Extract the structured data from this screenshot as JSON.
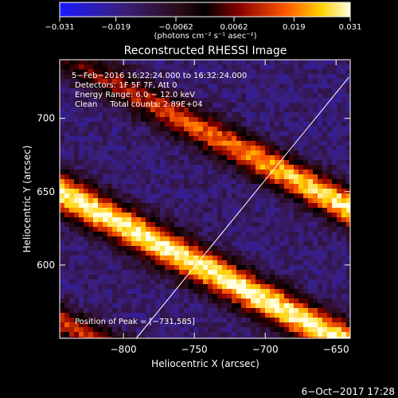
{
  "chart_data": {
    "type": "heatmap",
    "title": "Reconstructed RHESSI Image",
    "xlabel": "Heliocentric X (arcsec)",
    "ylabel": "Heliocentric Y (arcsec)",
    "xlim": [
      -845,
      -640
    ],
    "ylim": [
      550,
      740
    ],
    "x_ticks": [
      -800,
      -750,
      -700,
      -650
    ],
    "x_tick_labels": [
      "−800",
      "−750",
      "−700",
      "−650"
    ],
    "y_ticks": [
      600,
      650,
      700
    ],
    "y_tick_labels": [
      "600",
      "650",
      "700"
    ],
    "colorbar": {
      "min": -0.031,
      "max": 0.031,
      "ticks": [
        -0.031,
        -0.019,
        -0.0062,
        0.0062,
        0.019,
        0.031
      ],
      "tick_labels": [
        "−0.031",
        "−0.019",
        "−0.0062",
        "0.0062",
        "0.019",
        "0.031"
      ],
      "unit_label": "(photons cm⁻² s⁻¹ asec⁻²)"
    },
    "annotations": [
      "5−Feb−2016 16:22:24.000 to 16:32:24.000",
      "Detectors: 1F 5F 7F, Att 0",
      "Energy Range: 6.0 − 12.0 keV",
      "Clean     Total counts: 2.89E+04"
    ],
    "peak_label": "Position of Peak = [−731,585]",
    "peak": [
      -731,
      585
    ],
    "limb_line": {
      "from": [
        -791,
        550
      ],
      "to": [
        -641,
        728
      ]
    },
    "timestamp": "6−Oct−2017 17:28"
  }
}
